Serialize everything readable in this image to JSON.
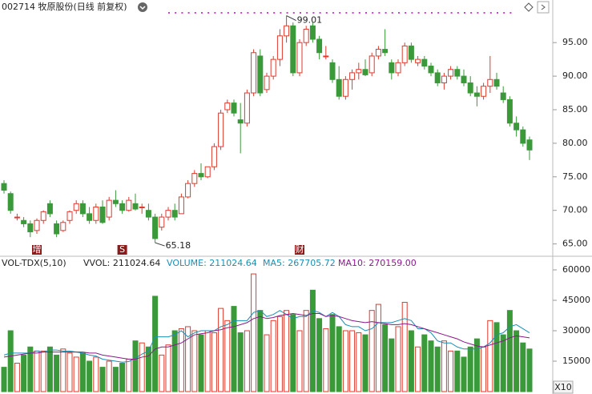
{
  "header": {
    "title": "002714 牧原股份(日线 前复权)",
    "zoom": "X10"
  },
  "chart_data": [
    {
      "type": "candlestick",
      "open": [
        74,
        72.5,
        69,
        68.5,
        68,
        67,
        68.5,
        71,
        68,
        67,
        68.5,
        70,
        71,
        69.5,
        68.5,
        70.5,
        69,
        71.5,
        71,
        70,
        71,
        70.5,
        70,
        69,
        67.5,
        69,
        70,
        69.5,
        72,
        74,
        75.5,
        75,
        76.5,
        79.5,
        85,
        86,
        83.5,
        83,
        87.5,
        93,
        88,
        90,
        92.5,
        96,
        97.5,
        90.5,
        95,
        97.5,
        95.5,
        93,
        92,
        89.5,
        87,
        89.5,
        90.5,
        91,
        90.5,
        93,
        94,
        92,
        90.5,
        92,
        94.5,
        92,
        92.5,
        91.5,
        90.5,
        89,
        90,
        91,
        90,
        89,
        87.5,
        87,
        88.5,
        89.5,
        87.5,
        86.5,
        83,
        82,
        80.5
      ],
      "high": [
        74.5,
        72.8,
        69.5,
        69,
        68.5,
        68.8,
        70,
        71.5,
        68.5,
        68.5,
        70,
        71.5,
        71.5,
        70.5,
        71,
        71.5,
        72,
        73,
        71.5,
        72,
        72.5,
        71,
        71,
        69.5,
        69.5,
        70.5,
        71,
        72.5,
        74.5,
        76,
        77,
        76.5,
        80,
        85,
        86.5,
        86.5,
        86,
        88,
        94,
        94,
        90.5,
        93,
        97,
        99.01,
        98,
        95.5,
        97.5,
        98,
        96,
        94.5,
        92.5,
        91.5,
        90,
        91,
        92,
        92.5,
        93.5,
        94.5,
        97,
        92.5,
        92.5,
        95,
        95,
        93,
        93,
        92,
        91,
        90.5,
        91.5,
        91.5,
        91,
        90,
        88.5,
        89,
        93,
        90.5,
        88.5,
        87,
        84,
        82.5,
        81
      ],
      "low": [
        72.5,
        69.5,
        68.5,
        67.5,
        66,
        66.5,
        68,
        69,
        66,
        66.8,
        68,
        69.5,
        69,
        68,
        68,
        68,
        68.5,
        70.5,
        69.5,
        69.8,
        70,
        69.5,
        68.5,
        65.18,
        67,
        68.5,
        68.5,
        69.5,
        71.8,
        73.5,
        74.5,
        74.8,
        76,
        79,
        84.5,
        84,
        78.5,
        82.5,
        87,
        87,
        87.5,
        89.5,
        91.5,
        95,
        90,
        90,
        94.5,
        95,
        92.5,
        92.5,
        89,
        86.5,
        86.5,
        88,
        89.5,
        90,
        90,
        92.5,
        93,
        89.5,
        90,
        91.5,
        92,
        91.5,
        91,
        90,
        88.5,
        88,
        89.5,
        89.5,
        88.5,
        87,
        85.5,
        86.5,
        87.5,
        88,
        86,
        82.5,
        81,
        79.5,
        77.5
      ],
      "close": [
        73,
        70,
        69,
        68,
        66.8,
        68.5,
        69.8,
        69.5,
        66.5,
        68.2,
        69.8,
        71,
        69.5,
        68.5,
        70.5,
        68.2,
        71.5,
        71,
        70,
        71.5,
        70.2,
        70.5,
        69,
        65.8,
        69,
        70,
        69,
        72,
        74,
        75.5,
        75,
        76.5,
        79.5,
        84.5,
        86,
        84.5,
        83,
        87.5,
        93.5,
        87.5,
        90,
        92.5,
        96,
        97.5,
        90.5,
        95,
        97,
        95.5,
        93.5,
        93,
        89.5,
        87,
        89.5,
        90.5,
        91,
        90.2,
        93,
        94,
        93.5,
        90.5,
        92,
        94.5,
        92.5,
        92.5,
        91.5,
        90.5,
        89,
        90,
        91,
        90,
        89,
        87.5,
        87,
        88.5,
        89.5,
        88.5,
        86.5,
        83,
        82,
        80,
        79
      ],
      "max_label": "99.01",
      "min_label": "65.18",
      "events": [
        {
          "label": "增",
          "index": 5
        },
        {
          "label": "S",
          "index": 18
        },
        {
          "label": "财",
          "index": 45
        }
      ],
      "up_color": "#e03a2e",
      "down_color": "#3a9a3a",
      "ylim": [
        63.4,
        99.2
      ],
      "yticks": [
        {
          "value": 65,
          "label": "65.00"
        },
        {
          "value": 70,
          "label": "70.00"
        },
        {
          "value": 75,
          "label": "75.00"
        },
        {
          "value": 80,
          "label": "80.00"
        },
        {
          "value": 85,
          "label": "85.00"
        },
        {
          "value": 90,
          "label": "90.00"
        },
        {
          "value": 95,
          "label": "95.00"
        }
      ]
    },
    {
      "type": "volume",
      "indicator": "VOL-TDX(5,10)",
      "vvol": "VVOL: 211024.64",
      "volume_text": "VOLUME: 211024.64",
      "ma5_text": "MA5: 267705.72",
      "ma10_text": "MA10: 270159.00",
      "series": [
        {
          "name": "VOLUME",
          "color": "#1a8fb3",
          "values": [
            12000,
            30000,
            14000,
            18000,
            22000,
            20000,
            20000,
            22000,
            18000,
            21000,
            19000,
            17000,
            19000,
            15000,
            17000,
            12000,
            15000,
            12000,
            14000,
            16000,
            25000,
            24000,
            22000,
            47000,
            18000,
            23000,
            30000,
            31000,
            32000,
            30000,
            28000,
            30000,
            29000,
            41000,
            35000,
            42000,
            29000,
            30000,
            58000,
            40000,
            28000,
            35000,
            37000,
            40000,
            38000,
            30000,
            40000,
            50000,
            36000,
            31000,
            38000,
            32000,
            30000,
            30000,
            29000,
            28000,
            40000,
            43000,
            33000,
            26000,
            32000,
            44000,
            30000,
            22000,
            28000,
            25000,
            22000,
            25000,
            20000,
            20000,
            17000,
            22000,
            26000,
            22000,
            35000,
            34000,
            28000,
            40000,
            30000,
            24000,
            21000
          ]
        },
        {
          "name": "MA5",
          "color": "#1a8fb3",
          "values": [
            18000,
            19000,
            19000,
            19000,
            19000,
            20000,
            19500,
            20500,
            20500,
            20000,
            20000,
            19500,
            19000,
            18000,
            17500,
            16000,
            15500,
            15000,
            14500,
            14800,
            16500,
            18500,
            20000,
            27000,
            27000,
            27000,
            28000,
            30000,
            27000,
            29000,
            30000,
            30000,
            30000,
            32000,
            33000,
            35000,
            35000,
            35000,
            39000,
            40000,
            37000,
            38000,
            40000,
            38000,
            36000,
            37000,
            37000,
            40000,
            39000,
            37000,
            39000,
            37000,
            33000,
            32000,
            32000,
            30000,
            31000,
            34000,
            34000,
            34000,
            35000,
            36000,
            35000,
            31000,
            31000,
            29000,
            25000,
            24000,
            24000,
            22000,
            21000,
            21000,
            21000,
            22000,
            24000,
            28000,
            29000,
            32000,
            33000,
            31000,
            29000
          ]
        },
        {
          "name": "MA10",
          "color": "#8a1a8a",
          "values": [
            17000,
            17500,
            18000,
            18500,
            19000,
            19000,
            19500,
            19500,
            19500,
            19500,
            19500,
            19500,
            19500,
            19000,
            19000,
            18000,
            17500,
            17000,
            16500,
            16000,
            16000,
            17000,
            17500,
            21000,
            22000,
            22000,
            23000,
            24000,
            26000,
            28000,
            28500,
            29000,
            30000,
            30500,
            31500,
            32000,
            33000,
            34000,
            36000,
            37000,
            36000,
            36500,
            37500,
            38000,
            38500,
            38000,
            37500,
            38500,
            38500,
            37000,
            37500,
            37000,
            36000,
            35000,
            34500,
            34000,
            34500,
            34000,
            33500,
            33000,
            33000,
            33500,
            33000,
            32000,
            31000,
            30000,
            29000,
            28000,
            27000,
            26000,
            24500,
            23500,
            22500,
            22000,
            23000,
            24000,
            25000,
            26500,
            27500,
            27000,
            26500
          ]
        }
      ],
      "ylim": [
        0,
        62760
      ],
      "yticks": [
        15000,
        30000,
        45000,
        60000
      ]
    }
  ]
}
